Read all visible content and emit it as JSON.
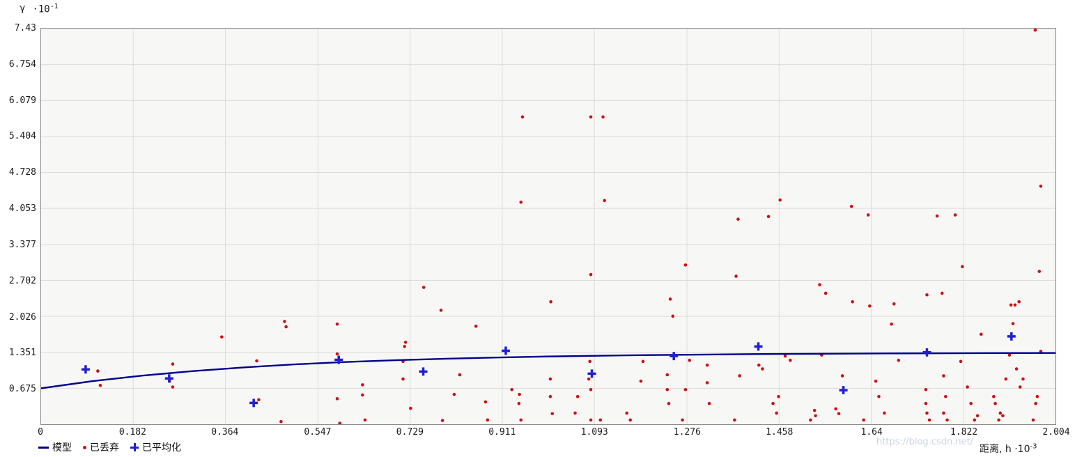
{
  "watermark": "https://blog.csdn.net/",
  "legend": {
    "model": "模型",
    "discarded": "已丢弃",
    "averaged": "已平均化"
  },
  "chart_data": {
    "type": "scatter",
    "title": "",
    "grid": true,
    "legend_position": "bottom-left",
    "colors": {
      "model": "#00008b",
      "discarded": "#cc1111",
      "averaged": "#1f1fd4",
      "grid": "#dcdcda",
      "plot_background": "#f7f7f5"
    },
    "y_axis": {
      "symbol": "γ",
      "mult": "·10",
      "exp": "-1",
      "max": 7.43,
      "min": 0,
      "ticks": [
        {
          "v": 7.43,
          "label": "7.43"
        },
        {
          "v": 6.754,
          "label": "6.754"
        },
        {
          "v": 6.079,
          "label": "6.079"
        },
        {
          "v": 5.404,
          "label": "5.404"
        },
        {
          "v": 4.728,
          "label": "4.728"
        },
        {
          "v": 4.053,
          "label": "4.053"
        },
        {
          "v": 3.377,
          "label": "3.377"
        },
        {
          "v": 2.702,
          "label": "2.702"
        },
        {
          "v": 2.026,
          "label": "2.026"
        },
        {
          "v": 1.351,
          "label": "1.351"
        },
        {
          "v": 0.675,
          "label": "0.675"
        }
      ]
    },
    "x_axis": {
      "title": "距离, h",
      "mult": "·10",
      "exp": "-3",
      "max": 2.004,
      "min": 0,
      "ticks": [
        {
          "v": 0,
          "label": "0"
        },
        {
          "v": 0.182,
          "label": "0.182"
        },
        {
          "v": 0.364,
          "label": "0.364"
        },
        {
          "v": 0.547,
          "label": "0.547"
        },
        {
          "v": 0.729,
          "label": "0.729"
        },
        {
          "v": 0.911,
          "label": "0.911"
        },
        {
          "v": 1.093,
          "label": "1.093"
        },
        {
          "v": 1.276,
          "label": "1.276"
        },
        {
          "v": 1.458,
          "label": "1.458"
        },
        {
          "v": 1.64,
          "label": "1.64"
        },
        {
          "v": 1.822,
          "label": "1.822"
        },
        {
          "v": 2.004,
          "label": "2.004"
        }
      ]
    },
    "series": {
      "model": {
        "name": "模型",
        "type": "line",
        "points": [
          [
            0,
            0.675
          ],
          [
            0.1,
            0.808
          ],
          [
            0.2,
            0.914
          ],
          [
            0.3,
            0.999
          ],
          [
            0.4,
            1.068
          ],
          [
            0.5,
            1.123
          ],
          [
            0.6,
            1.168
          ],
          [
            0.7,
            1.203
          ],
          [
            0.8,
            1.231
          ],
          [
            0.9,
            1.254
          ],
          [
            1.0,
            1.272
          ],
          [
            1.1,
            1.287
          ],
          [
            1.2,
            1.299
          ],
          [
            1.3,
            1.308
          ],
          [
            1.4,
            1.316
          ],
          [
            1.5,
            1.322
          ],
          [
            1.6,
            1.327
          ],
          [
            1.7,
            1.331
          ],
          [
            1.8,
            1.334
          ],
          [
            1.9,
            1.337
          ],
          [
            2.004,
            1.339
          ]
        ]
      },
      "discarded": {
        "name": "已丢弃",
        "type": "scatter",
        "points": [
          [
            0.112,
            1.0
          ],
          [
            0.117,
            0.73
          ],
          [
            0.26,
            1.13
          ],
          [
            0.254,
            0.81
          ],
          [
            0.26,
            0.7
          ],
          [
            0.357,
            1.64
          ],
          [
            0.426,
            1.19
          ],
          [
            0.43,
            0.46
          ],
          [
            0.474,
            0.05
          ],
          [
            0.481,
            1.93
          ],
          [
            0.484,
            1.83
          ],
          [
            0.585,
            1.88
          ],
          [
            0.585,
            1.32
          ],
          [
            0.585,
            0.48
          ],
          [
            0.59,
            0.02
          ],
          [
            0.635,
            0.74
          ],
          [
            0.635,
            0.55
          ],
          [
            0.64,
            0.08
          ],
          [
            0.715,
            1.18
          ],
          [
            0.715,
            0.85
          ],
          [
            0.72,
            1.54
          ],
          [
            0.718,
            1.46
          ],
          [
            0.73,
            0.3
          ],
          [
            0.756,
            2.57
          ],
          [
            0.79,
            2.14
          ],
          [
            0.793,
            0.07
          ],
          [
            0.816,
            0.56
          ],
          [
            0.827,
            0.93
          ],
          [
            0.859,
            1.84
          ],
          [
            0.882,
            0.08
          ],
          [
            0.878,
            0.42
          ],
          [
            0.951,
            5.77
          ],
          [
            0.948,
            4.17
          ],
          [
            0.945,
            0.56
          ],
          [
            0.944,
            0.39
          ],
          [
            0.948,
            0.08
          ],
          [
            0.93,
            0.65
          ],
          [
            1.007,
            2.3
          ],
          [
            1.006,
            0.85
          ],
          [
            1.006,
            0.52
          ],
          [
            1.01,
            0.2
          ],
          [
            1.055,
            0.21
          ],
          [
            1.06,
            0.52
          ],
          [
            1.086,
            5.77
          ],
          [
            1.11,
            5.77
          ],
          [
            1.086,
            2.81
          ],
          [
            1.084,
            1.18
          ],
          [
            1.082,
            0.85
          ],
          [
            1.086,
            0.65
          ],
          [
            1.086,
            0.08
          ],
          [
            1.113,
            4.2
          ],
          [
            1.105,
            0.08
          ],
          [
            1.157,
            0.21
          ],
          [
            1.164,
            0.08
          ],
          [
            1.185,
            0.81
          ],
          [
            1.189,
            1.18
          ],
          [
            1.237,
            0.93
          ],
          [
            1.237,
            0.65
          ],
          [
            1.24,
            0.39
          ],
          [
            1.243,
            2.35
          ],
          [
            1.248,
            2.03
          ],
          [
            1.273,
            2.99
          ],
          [
            1.267,
            0.08
          ],
          [
            1.273,
            0.65
          ],
          [
            1.281,
            1.2
          ],
          [
            1.316,
            1.11
          ],
          [
            1.316,
            0.78
          ],
          [
            1.32,
            0.39
          ],
          [
            1.377,
            3.85
          ],
          [
            1.373,
            2.78
          ],
          [
            1.37,
            0.08
          ],
          [
            1.38,
            0.91
          ],
          [
            1.418,
            1.11
          ],
          [
            1.425,
            1.04
          ],
          [
            1.437,
            3.9
          ],
          [
            1.46,
            4.21
          ],
          [
            1.446,
            0.39
          ],
          [
            1.453,
            0.21
          ],
          [
            1.457,
            0.52
          ],
          [
            1.47,
            1.28
          ],
          [
            1.48,
            1.2
          ],
          [
            1.52,
            0.08
          ],
          [
            1.528,
            0.26
          ],
          [
            1.53,
            0.16
          ],
          [
            1.538,
            2.62
          ],
          [
            1.55,
            2.46
          ],
          [
            1.542,
            1.3
          ],
          [
            1.57,
            0.29
          ],
          [
            1.576,
            0.2
          ],
          [
            1.583,
            0.91
          ],
          [
            1.601,
            4.09
          ],
          [
            1.603,
            2.3
          ],
          [
            1.634,
            3.93
          ],
          [
            1.637,
            2.22
          ],
          [
            1.625,
            0.08
          ],
          [
            1.649,
            0.81
          ],
          [
            1.655,
            0.52
          ],
          [
            1.666,
            0.21
          ],
          [
            1.685,
            2.26
          ],
          [
            1.68,
            1.88
          ],
          [
            1.694,
            1.2
          ],
          [
            1.75,
            2.43
          ],
          [
            1.748,
            0.65
          ],
          [
            1.748,
            0.39
          ],
          [
            1.75,
            0.21
          ],
          [
            1.755,
            0.08
          ],
          [
            1.77,
            3.91
          ],
          [
            1.78,
            2.46
          ],
          [
            1.783,
            0.91
          ],
          [
            1.787,
            0.52
          ],
          [
            1.79,
            0.08
          ],
          [
            1.783,
            0.21
          ],
          [
            1.806,
            3.93
          ],
          [
            1.82,
            2.96
          ],
          [
            1.817,
            1.18
          ],
          [
            1.83,
            0.7
          ],
          [
            1.837,
            0.39
          ],
          [
            1.844,
            0.08
          ],
          [
            1.85,
            0.16
          ],
          [
            1.857,
            1.69
          ],
          [
            1.882,
            0.52
          ],
          [
            1.885,
            0.39
          ],
          [
            1.892,
            0.08
          ],
          [
            1.895,
            0.21
          ],
          [
            1.9,
            0.16
          ],
          [
            1.906,
            0.85
          ],
          [
            1.913,
            1.3
          ],
          [
            1.916,
            2.24
          ],
          [
            1.92,
            1.89
          ],
          [
            1.924,
            2.24
          ],
          [
            1.932,
            2.3
          ],
          [
            1.927,
            1.04
          ],
          [
            1.934,
            0.7
          ],
          [
            1.94,
            0.85
          ],
          [
            1.964,
            7.4
          ],
          [
            1.975,
            4.47
          ],
          [
            1.972,
            2.87
          ],
          [
            1.975,
            1.37
          ],
          [
            1.968,
            0.52
          ],
          [
            1.965,
            0.39
          ],
          [
            1.96,
            0.08
          ]
        ]
      },
      "averaged": {
        "name": "已平均化",
        "type": "scatter-plus",
        "points": [
          [
            0.088,
            1.03
          ],
          [
            0.253,
            0.86
          ],
          [
            0.42,
            0.4
          ],
          [
            0.588,
            1.21
          ],
          [
            0.755,
            0.99
          ],
          [
            0.918,
            1.38
          ],
          [
            1.088,
            0.95
          ],
          [
            1.25,
            1.28
          ],
          [
            1.417,
            1.46
          ],
          [
            1.585,
            0.64
          ],
          [
            1.75,
            1.35
          ],
          [
            1.917,
            1.65
          ]
        ]
      }
    }
  }
}
